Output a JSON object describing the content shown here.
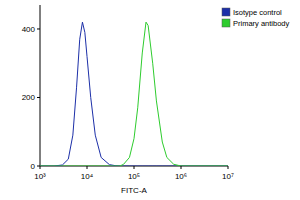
{
  "chart_data": {
    "type": "line",
    "x_label": "FITC-A",
    "log": "x",
    "xlim": [
      1000,
      10000000
    ],
    "xticks": [
      {
        "value": 1000,
        "label": "10³"
      },
      {
        "value": 10000,
        "label": "10⁴"
      },
      {
        "value": 100000,
        "label": "10⁵"
      },
      {
        "value": 1000000,
        "label": "10⁶"
      },
      {
        "value": 10000000,
        "label": "10⁷"
      }
    ],
    "ylim": [
      0,
      470
    ],
    "yticks": [
      0,
      200,
      400
    ],
    "legend": "top-right",
    "x": [
      1000,
      2000,
      3000,
      4000,
      5000,
      6000,
      7000,
      8000,
      9000,
      10000,
      12000,
      15000,
      20000,
      30000,
      40000,
      50000,
      60000,
      80000,
      100000,
      120000,
      150000,
      180000,
      200000,
      250000,
      300000,
      400000,
      500000,
      700000,
      1000000,
      10000000
    ],
    "series": [
      {
        "name": "Isotype control",
        "color": "#1c2fa8",
        "values": [
          0,
          0,
          3,
          20,
          90,
          230,
          370,
          420,
          390,
          320,
          200,
          90,
          25,
          4,
          1,
          0,
          0,
          0,
          0,
          0,
          0,
          0,
          0,
          0,
          0,
          0,
          0,
          0,
          0,
          0
        ]
      },
      {
        "name": "Primary antibody",
        "color": "#2ecc2e",
        "values": [
          0,
          0,
          0,
          0,
          0,
          0,
          0,
          0,
          0,
          0,
          0,
          0,
          0,
          0,
          0,
          0,
          5,
          25,
          80,
          170,
          330,
          420,
          410,
          300,
          190,
          70,
          25,
          5,
          0,
          0
        ]
      }
    ]
  }
}
